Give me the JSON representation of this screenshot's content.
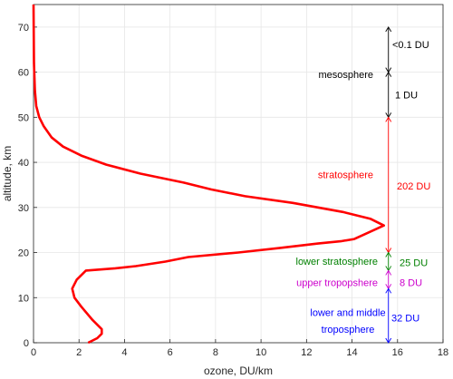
{
  "chart_data": {
    "type": "line",
    "title": "",
    "xlabel": "ozone, DU/km",
    "ylabel": "altitude, km",
    "xlim": [
      0,
      18
    ],
    "ylim": [
      0,
      75
    ],
    "xticks": [
      "0",
      "2",
      "4",
      "6",
      "8",
      "10",
      "12",
      "14",
      "16",
      "18"
    ],
    "yticks": [
      "0",
      "10",
      "20",
      "30",
      "40",
      "50",
      "60",
      "70"
    ],
    "grid": true,
    "series": [
      {
        "color": "#ff0000",
        "x": [
          2.4,
          2.8,
          3.0,
          3.0,
          2.6,
          2.1,
          1.8,
          1.7,
          1.9,
          2.3,
          3.6,
          4.5,
          5.8,
          6.8,
          9.0,
          10.8,
          12.5,
          13.5,
          14.1,
          15.4,
          14.8,
          13.6,
          11.4,
          9.3,
          7.8,
          6.6,
          4.7,
          3.2,
          2.1,
          1.3,
          0.8,
          0.45,
          0.25,
          0.12,
          0.06,
          0.02,
          0.0
        ],
        "y": [
          0,
          1,
          2,
          3,
          5,
          8,
          10,
          12,
          14,
          16,
          16.5,
          17,
          18,
          19,
          20,
          21,
          22,
          22.5,
          23,
          26,
          27.5,
          29,
          31,
          32.5,
          34,
          35.5,
          37.5,
          39.5,
          41.5,
          43.5,
          45.5,
          48,
          50,
          52.5,
          56,
          62,
          75
        ]
      }
    ],
    "annotations": [
      {
        "text": "<0.1 DU",
        "color": "#000000",
        "y": 66.2
      },
      {
        "text": "mesosphere",
        "color": "#000000",
        "y": 59.5
      },
      {
        "text": "1 DU",
        "color": "#000000",
        "y": 55.0
      },
      {
        "text": "stratosphere",
        "color": "#ff0000",
        "y": 37.3
      },
      {
        "text": "202 DU",
        "color": "#ff0000",
        "y": 34.8
      },
      {
        "text": "25 DU",
        "color": "#008000",
        "y": 17.8
      },
      {
        "text": "lower stratosphere",
        "color": "#008000",
        "y": 18.1
      },
      {
        "text": "8 DU",
        "color": "#cc00cc",
        "y": 13.4
      },
      {
        "text": "upper tropopshere",
        "color": "#cc00cc",
        "y": 13.4
      },
      {
        "text": "32 DU",
        "color": "#0000ff",
        "y": 5.5
      },
      {
        "text": "lower and middle",
        "color": "#0000ff",
        "y": 6.7
      },
      {
        "text": "troposphere",
        "color": "#0000ff",
        "y": 3.0
      }
    ],
    "brackets": [
      {
        "color": "#000000",
        "y_from": 60,
        "y_to": 70,
        "x": 15.6
      },
      {
        "color": "#000000",
        "y_from": 50,
        "y_to": 60,
        "x": 15.6
      },
      {
        "color": "#ff0000",
        "y_from": 20,
        "y_to": 50,
        "x": 15.6
      },
      {
        "color": "#008000",
        "y_from": 16,
        "y_to": 20,
        "x": 15.6
      },
      {
        "color": "#cc00cc",
        "y_from": 12,
        "y_to": 16,
        "x": 15.6
      },
      {
        "color": "#0000ff",
        "y_from": 0,
        "y_to": 12,
        "x": 15.6
      }
    ]
  }
}
